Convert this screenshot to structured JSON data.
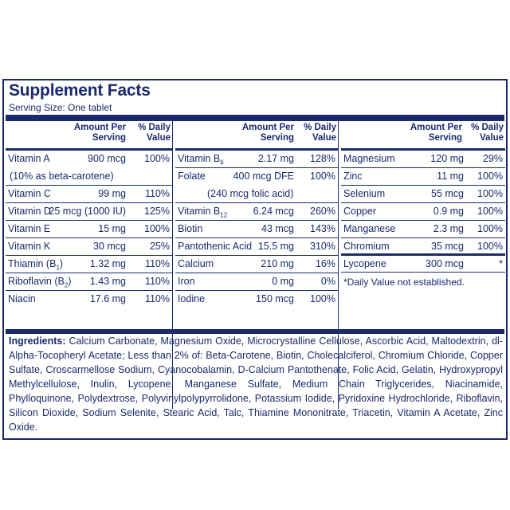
{
  "title": "Supplement Facts",
  "serving_size": "Serving Size: One tablet",
  "headers": {
    "amount": "Amount Per\nServing",
    "amount_l1": "Amount Per",
    "amount_l2": "Serving",
    "dv_l1": "% Daily",
    "dv_l2": "Value"
  },
  "col1": [
    {
      "name": "Vitamin A",
      "amount": "900 mcg",
      "dv": "100%",
      "sub": "(10% as beta-carotene)"
    },
    {
      "name": "Vitamin C",
      "amount": "99 mg",
      "dv": "110%"
    },
    {
      "name": "Vitamin D",
      "amount": "25 mcg (1000 IU)",
      "dv": "125%"
    },
    {
      "name": "Vitamin E",
      "amount": "15 mg",
      "dv": "100%"
    },
    {
      "name": "Vitamin K",
      "amount": "30 mcg",
      "dv": "25%"
    },
    {
      "name": "Thiamin (B",
      "sub_index": "1",
      "name_end": ")",
      "amount": "1.32 mg",
      "dv": "110%"
    },
    {
      "name": "Riboflavin (B",
      "sub_index": "2",
      "name_end": ")",
      "amount": "1.43 mg",
      "dv": "110%"
    },
    {
      "name": "Niacin",
      "amount": "17.6 mg",
      "dv": "110%"
    }
  ],
  "col2": [
    {
      "name": "Vitamin B",
      "sub_index": "6",
      "amount": "2.17 mg",
      "dv": "128%"
    },
    {
      "name": "Folate",
      "amount": "400 mcg DFE",
      "dv": "100%",
      "sub": "(240 mcg folic acid)"
    },
    {
      "name": "Vitamin B",
      "sub_index": "12",
      "amount": "6.24 mcg",
      "dv": "260%"
    },
    {
      "name": "Biotin",
      "amount": "43 mcg",
      "dv": "143%"
    },
    {
      "name": "Pantothenic Acid",
      "amount": "15.5 mg",
      "dv": "310%"
    },
    {
      "name": "Calcium",
      "amount": "210 mg",
      "dv": "16%"
    },
    {
      "name": "Iron",
      "amount": "0 mg",
      "dv": "0%"
    },
    {
      "name": "Iodine",
      "amount": "150 mcg",
      "dv": "100%"
    }
  ],
  "col3": [
    {
      "name": "Magnesium",
      "amount": "120 mg",
      "dv": "29%"
    },
    {
      "name": "Zinc",
      "amount": "11 mg",
      "dv": "100%"
    },
    {
      "name": "Selenium",
      "amount": "55 mcg",
      "dv": "100%"
    },
    {
      "name": "Copper",
      "amount": "0.9 mg",
      "dv": "100%"
    },
    {
      "name": "Manganese",
      "amount": "2.3 mg",
      "dv": "100%"
    },
    {
      "name": "Chromium",
      "amount": "35 mcg",
      "dv": "100%"
    },
    {
      "name": "Lycopene",
      "amount": "300 mcg",
      "dv": "*"
    }
  ],
  "footnote": "*Daily Value not established.",
  "ingredients_label": "Ingredients:",
  "ingredients_text": " Calcium Carbonate, Magnesium Oxide, Microcrystalline Cellulose, Ascorbic Acid, Maltodextrin, dl-Alpha-Tocopheryl Acetate; Less than 2% of: Beta-Carotene, Biotin, Cholecalciferol, Chromium Chloride, Copper Sulfate, Croscarmellose Sodium, Cyanocobalamin, D-Calcium Pantothenate, Folic Acid, Gelatin, Hydroxypropyl Methylcellulose, Inulin, Lycopene, Manganese Sulfate, Medium Chain Triglycerides, Niacinamide, Phylloquinone, Polydextrose, Polyvinylpolypyrrolidone, Potassium Iodide, Pyridoxine Hydrochloride, Riboflavin, Silicon Dioxide, Sodium Selenite, Stearic Acid, Talc, Thiamine Mononitrate, Triacetin, Vitamin A Acetate, Zinc Oxide.",
  "colors": {
    "ink": "#1a2a6c",
    "background": "#ffffff"
  }
}
